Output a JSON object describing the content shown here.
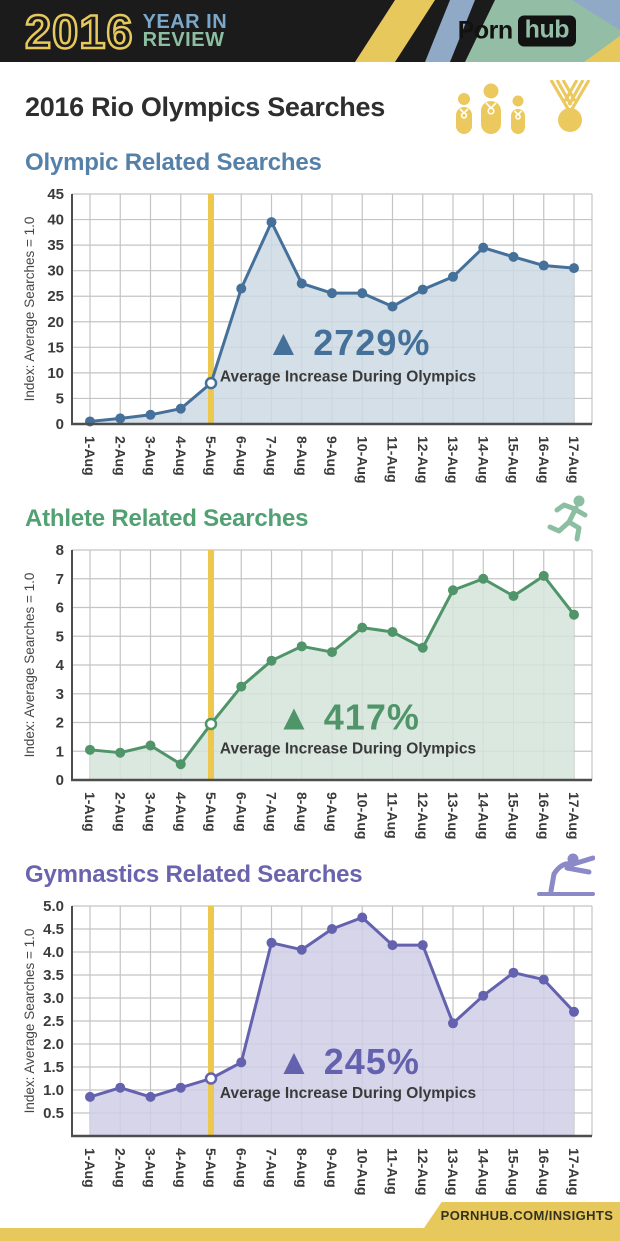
{
  "header": {
    "year": "2016",
    "tagline_line1": "YEAR IN",
    "tagline_line2": "REVIEW",
    "brand_part1": "Porn",
    "brand_part2": "hub"
  },
  "page_title": "2016 Rio Olympics Searches",
  "footer_label": "PORNHUB.COM/INSIGHTS",
  "colors": {
    "header_bg": "#1b1b1b",
    "yellow": "#e7c85c",
    "header_stripe_blue": "#8fa9c6",
    "header_stripe_green": "#93bda4",
    "tagline_blue": "#7ba7c9",
    "tagline_green": "#8cbfa2",
    "gold_icons": "#ecc95f",
    "grid": "#c4c4c4",
    "axis": "#4d4d4d",
    "tick_text": "#3b3b3b",
    "caption_text": "#3a3a3a",
    "event_line": "#edc84f"
  },
  "chart_data": [
    {
      "type": "area",
      "title": "Olympic Related Searches",
      "title_color": "#5581a8",
      "line_color": "#44709a",
      "fill_color": "#cdd9e3",
      "icon": "podium-medal-icon",
      "ylabel": "Index: Average Searches = 1.0",
      "ylim": [
        0,
        45
      ],
      "ytick_values": [
        0,
        5,
        10,
        15,
        20,
        25,
        30,
        35,
        40,
        45
      ],
      "ytick_labels": [
        "0",
        "5",
        "10",
        "15",
        "20",
        "25",
        "30",
        "35",
        "40",
        "45"
      ],
      "grid": true,
      "x": [
        "1-Aug",
        "2-Aug",
        "3-Aug",
        "4-Aug",
        "5-Aug",
        "6-Aug",
        "7-Aug",
        "8-Aug",
        "9-Aug",
        "10-Aug",
        "11-Aug",
        "12-Aug",
        "13-Aug",
        "14-Aug",
        "15-Aug",
        "16-Aug",
        "17-Aug"
      ],
      "values": [
        0.5,
        1.1,
        1.8,
        3.0,
        8.0,
        26.5,
        39.5,
        27.5,
        25.6,
        25.6,
        23.0,
        26.3,
        28.8,
        34.5,
        32.7,
        31.0,
        30.5
      ],
      "event_line_x": "5-Aug",
      "annotation": {
        "symbol": "▲",
        "value": "2729%",
        "caption": "Average Increase During Olympics",
        "y_frac": 0.7,
        "caption_y_frac": 0.815
      }
    },
    {
      "type": "area",
      "title": "Athlete Related Searches",
      "title_color": "#51a173",
      "line_color": "#4f9569",
      "fill_color": "#d5e4da",
      "icon": "runner-icon",
      "ylabel": "Index: Average Searches = 1.0",
      "ylim": [
        0,
        8
      ],
      "ytick_values": [
        0,
        1,
        2,
        3,
        4,
        5,
        6,
        7,
        8
      ],
      "ytick_labels": [
        "0",
        "1",
        "2",
        "3",
        "4",
        "5",
        "6",
        "7",
        "8"
      ],
      "grid": true,
      "x": [
        "1-Aug",
        "2-Aug",
        "3-Aug",
        "4-Aug",
        "5-Aug",
        "6-Aug",
        "7-Aug",
        "8-Aug",
        "9-Aug",
        "10-Aug",
        "11-Aug",
        "12-Aug",
        "13-Aug",
        "14-Aug",
        "15-Aug",
        "16-Aug",
        "17-Aug"
      ],
      "values": [
        1.05,
        0.95,
        1.2,
        0.55,
        1.95,
        3.25,
        4.15,
        4.65,
        4.45,
        5.3,
        5.15,
        4.6,
        6.6,
        7.0,
        6.4,
        7.1,
        5.75
      ],
      "event_line_x": "5-Aug",
      "annotation": {
        "symbol": "▲",
        "value": "417%",
        "caption": "Average Increase During Olympics",
        "y_frac": 0.78,
        "caption_y_frac": 0.885
      }
    },
    {
      "type": "area",
      "title": "Gymnastics Related Searches",
      "title_color": "#6a63ae",
      "line_color": "#6462ae",
      "fill_color": "#d0cee6",
      "icon": "gymnast-icon",
      "ylabel": "Index: Average Searches = 1.0",
      "ylim": [
        0,
        5
      ],
      "ytick_values": [
        0.5,
        1.0,
        1.5,
        2.0,
        2.5,
        3.0,
        3.5,
        4.0,
        4.5,
        5.0
      ],
      "ytick_labels": [
        "0.5",
        "1.0",
        "1.5",
        "2.0",
        "2.5",
        "3.0",
        "3.5",
        "4.0",
        "4.5",
        "5.0"
      ],
      "grid": true,
      "x": [
        "1-Aug",
        "2-Aug",
        "3-Aug",
        "4-Aug",
        "5-Aug",
        "6-Aug",
        "7-Aug",
        "8-Aug",
        "9-Aug",
        "10-Aug",
        "11-Aug",
        "12-Aug",
        "13-Aug",
        "14-Aug",
        "15-Aug",
        "16-Aug",
        "17-Aug"
      ],
      "values": [
        0.85,
        1.05,
        0.85,
        1.05,
        1.25,
        1.6,
        4.2,
        4.05,
        4.5,
        4.75,
        4.15,
        4.15,
        2.45,
        3.05,
        3.55,
        3.4,
        2.7
      ],
      "event_line_x": "5-Aug",
      "annotation": {
        "symbol": "▲",
        "value": "245%",
        "caption": "Average Increase During Olympics",
        "y_frac": 0.73,
        "caption_y_frac": 0.835
      }
    }
  ]
}
